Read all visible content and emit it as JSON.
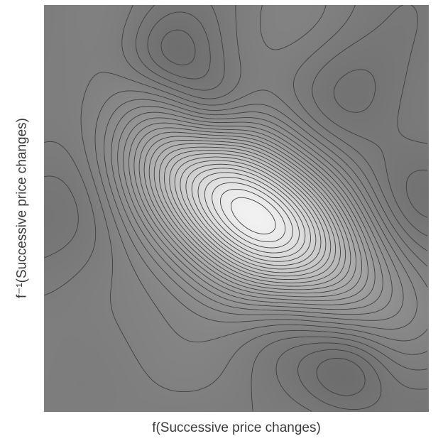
{
  "chart_data": {
    "type": "contour",
    "title": "",
    "xlabel": "f(Successive price changes)",
    "ylabel": "f⁻¹(Successive price changes)",
    "grid": false,
    "legend": "none",
    "colormap": "grayscale",
    "colors": {
      "high": "#f2f2f2",
      "low": "#666666",
      "contour_line": "#3f3f3f"
    },
    "peaks": [
      {
        "x": 0.0,
        "y": 0.0,
        "z": 1.0
      }
    ]
  }
}
